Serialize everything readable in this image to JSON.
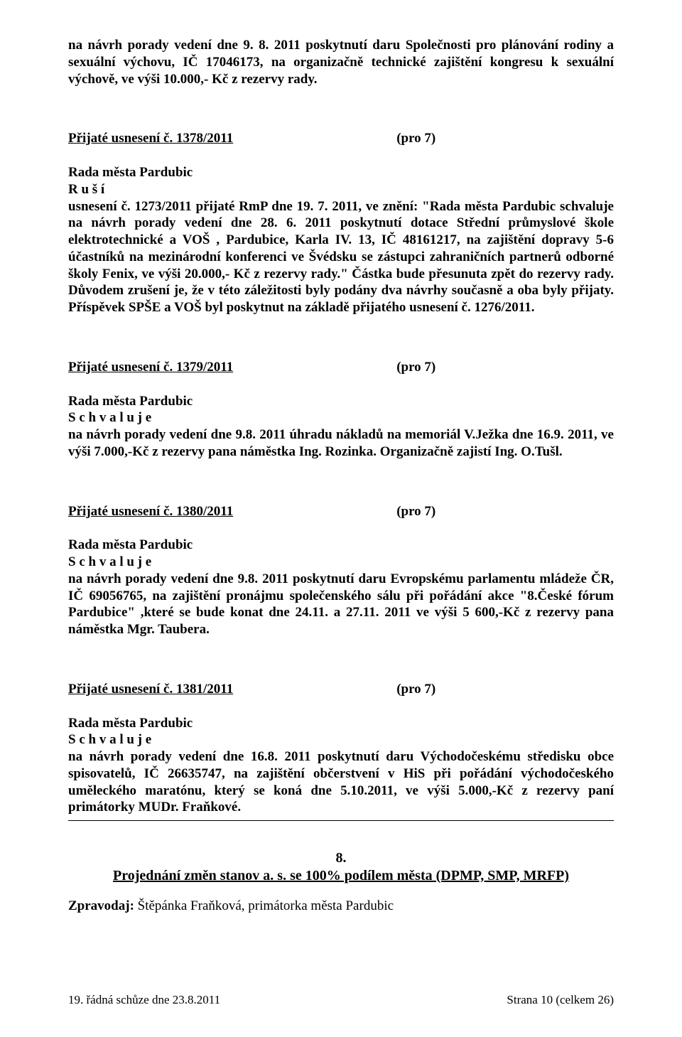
{
  "font": {
    "family": "Garamond / Times-like serif",
    "body_size_pt": 12,
    "title_size_pt": 13
  },
  "colors": {
    "text": "#000000",
    "background": "#ffffff",
    "hr": "#000000"
  },
  "intro_para": "na návrh porady vedení dne 9. 8. 2011 poskytnutí daru Společnosti pro plánování rodiny a sexuální výchovu, IČ 17046173, na organizačně technické zajištění kongresu k sexuální výchově, ve výši 10.000,- Kč z rezervy rady.",
  "res1378": {
    "heading_left": "Přijaté usnesení č. 1378/2011",
    "heading_right": "(pro 7)",
    "line1": "Rada města Pardubic",
    "line2": "R u š í",
    "body": "usnesení č. 1273/2011 přijaté RmP dne 19. 7. 2011, ve znění: \"Rada města Pardubic schvaluje na návrh porady vedení dne 28. 6. 2011 poskytnutí dotace Střední průmyslové škole elektrotechnické a VOŠ , Pardubice, Karla IV. 13, IČ 48161217, na zajištění dopravy 5-6 účastníků na mezinárodní konferenci ve Švédsku se zástupci zahraničních partnerů odborné školy Fenix, ve výši 20.000,- Kč z rezervy rady.\" Částka bude přesunuta zpět do rezervy rady. Důvodem zrušení je, že v této záležitosti byly podány dva návrhy současně a oba byly přijaty. Příspěvek SPŠE a VOŠ byl poskytnut na základě přijatého usnesení č. 1276/2011."
  },
  "res1379": {
    "heading_left": "Přijaté usnesení č. 1379/2011",
    "heading_right": "(pro 7)",
    "line1": "Rada města Pardubic",
    "line2": "S c h v a l u j e",
    "body": "na návrh porady vedení dne 9.8. 2011 úhradu nákladů na memoriál V.Ježka dne 16.9. 2011, ve výši 7.000,-Kč z rezervy pana náměstka Ing. Rozinka. Organizačně zajistí Ing. O.Tušl."
  },
  "res1380": {
    "heading_left": "Přijaté usnesení č. 1380/2011",
    "heading_right": "(pro 7)",
    "line1": "Rada města Pardubic",
    "line2": "S c h v a l u j e",
    "body": "na návrh porady vedení dne 9.8. 2011 poskytnutí daru Evropskému parlamentu mládeže ČR, IČ 69056765, na zajištění pronájmu společenského sálu při pořádání akce \"8.České fórum Pardubice\" ,které se bude konat dne 24.11. a 27.11. 2011 ve výši 5 600,-Kč z rezervy pana náměstka Mgr. Taubera."
  },
  "res1381": {
    "heading_left": "Přijaté usnesení č. 1381/2011",
    "heading_right": "(pro 7)",
    "line1": "Rada města Pardubic",
    "line2": "S c h v a l u j e",
    "body": "na návrh porady vedení dne 16.8. 2011 poskytnutí daru Východočeskému středisku obce spisovatelů, IČ 26635747, na zajištění občerstvení v HiS při pořádání východočeského uměleckého maratónu, který se koná dne 5.10.2011, ve výši 5.000,-Kč z rezervy paní primátorky MUDr. Fraňkové."
  },
  "section8": {
    "number": "8.",
    "title": "Projednání změn stanov a. s. se 100% podílem města (DPMP, SMP, MRFP)",
    "speaker_label": "Zpravodaj: ",
    "speaker_name": "Štěpánka Fraňková, primátorka města Pardubic"
  },
  "footer": {
    "left": "19. řádná schůze dne 23.8.2011",
    "right": "Strana 10 (celkem 26)"
  }
}
